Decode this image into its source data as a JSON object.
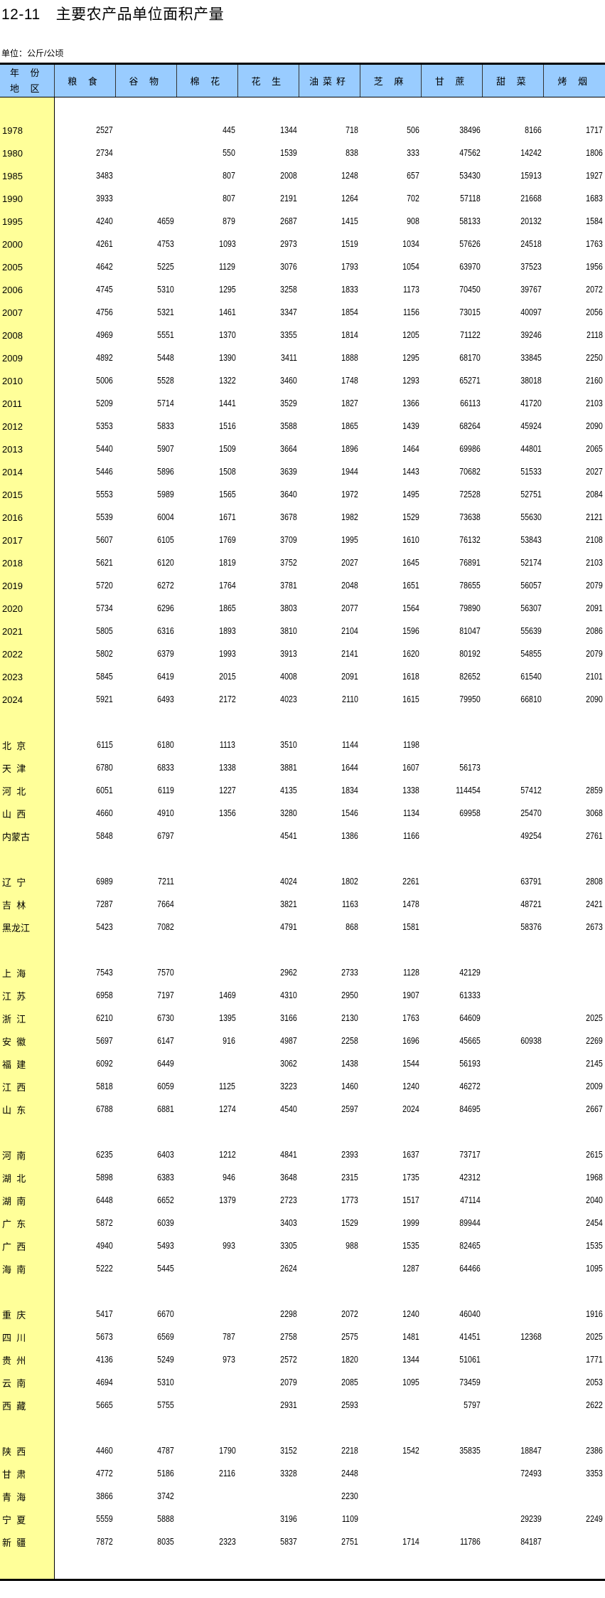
{
  "title": {
    "number": "12-11",
    "text": "主要农产品单位面积产量"
  },
  "unit": "单位：公斤/公顷",
  "colors": {
    "header_bg": "#99CCFF",
    "label_col_bg": "#FFFF99"
  },
  "header": {
    "first_col": [
      "年 份",
      "地 区"
    ],
    "columns": [
      "粮 食",
      "谷 物",
      "棉 花",
      "花 生",
      "油菜籽",
      "芝 麻",
      "甘 蔗",
      "甜 菜",
      "烤 烟"
    ]
  },
  "years": [
    {
      "label": "1978",
      "values": [
        "2527",
        "",
        "445",
        "1344",
        "718",
        "506",
        "38496",
        "8166",
        "1717"
      ]
    },
    {
      "label": "1980",
      "values": [
        "2734",
        "",
        "550",
        "1539",
        "838",
        "333",
        "47562",
        "14242",
        "1806"
      ]
    },
    {
      "label": "1985",
      "values": [
        "3483",
        "",
        "807",
        "2008",
        "1248",
        "657",
        "53430",
        "15913",
        "1927"
      ]
    },
    {
      "label": "1990",
      "values": [
        "3933",
        "",
        "807",
        "2191",
        "1264",
        "702",
        "57118",
        "21668",
        "1683"
      ]
    },
    {
      "label": "1995",
      "values": [
        "4240",
        "4659",
        "879",
        "2687",
        "1415",
        "908",
        "58133",
        "20132",
        "1584"
      ]
    },
    {
      "label": "2000",
      "values": [
        "4261",
        "4753",
        "1093",
        "2973",
        "1519",
        "1034",
        "57626",
        "24518",
        "1763"
      ]
    },
    {
      "label": "2005",
      "values": [
        "4642",
        "5225",
        "1129",
        "3076",
        "1793",
        "1054",
        "63970",
        "37523",
        "1956"
      ]
    },
    {
      "label": "2006",
      "values": [
        "4745",
        "5310",
        "1295",
        "3258",
        "1833",
        "1173",
        "70450",
        "39767",
        "2072"
      ]
    },
    {
      "label": "2007",
      "values": [
        "4756",
        "5321",
        "1461",
        "3347",
        "1854",
        "1156",
        "73015",
        "40097",
        "2056"
      ]
    },
    {
      "label": "2008",
      "values": [
        "4969",
        "5551",
        "1370",
        "3355",
        "1814",
        "1205",
        "71122",
        "39246",
        "2118"
      ]
    },
    {
      "label": "2009",
      "values": [
        "4892",
        "5448",
        "1390",
        "3411",
        "1888",
        "1295",
        "68170",
        "33845",
        "2250"
      ]
    },
    {
      "label": "2010",
      "values": [
        "5006",
        "5528",
        "1322",
        "3460",
        "1748",
        "1293",
        "65271",
        "38018",
        "2160"
      ]
    },
    {
      "label": "2011",
      "values": [
        "5209",
        "5714",
        "1441",
        "3529",
        "1827",
        "1366",
        "66113",
        "41720",
        "2103"
      ]
    },
    {
      "label": "2012",
      "values": [
        "5353",
        "5833",
        "1516",
        "3588",
        "1865",
        "1439",
        "68264",
        "45924",
        "2090"
      ]
    },
    {
      "label": "2013",
      "values": [
        "5440",
        "5907",
        "1509",
        "3664",
        "1896",
        "1464",
        "69986",
        "44801",
        "2065"
      ]
    },
    {
      "label": "2014",
      "values": [
        "5446",
        "5896",
        "1508",
        "3639",
        "1944",
        "1443",
        "70682",
        "51533",
        "2027"
      ]
    },
    {
      "label": "2015",
      "values": [
        "5553",
        "5989",
        "1565",
        "3640",
        "1972",
        "1495",
        "72528",
        "52751",
        "2084"
      ]
    },
    {
      "label": "2016",
      "values": [
        "5539",
        "6004",
        "1671",
        "3678",
        "1982",
        "1529",
        "73638",
        "55630",
        "2121"
      ]
    },
    {
      "label": "2017",
      "values": [
        "5607",
        "6105",
        "1769",
        "3709",
        "1995",
        "1610",
        "76132",
        "53843",
        "2108"
      ]
    },
    {
      "label": "2018",
      "values": [
        "5621",
        "6120",
        "1819",
        "3752",
        "2027",
        "1645",
        "76891",
        "52174",
        "2103"
      ]
    },
    {
      "label": "2019",
      "values": [
        "5720",
        "6272",
        "1764",
        "3781",
        "2048",
        "1651",
        "78655",
        "56057",
        "2079"
      ]
    },
    {
      "label": "2020",
      "values": [
        "5734",
        "6296",
        "1865",
        "3803",
        "2077",
        "1564",
        "79890",
        "56307",
        "2091"
      ]
    },
    {
      "label": "2021",
      "values": [
        "5805",
        "6316",
        "1893",
        "3810",
        "2104",
        "1596",
        "81047",
        "55639",
        "2086"
      ]
    },
    {
      "label": "2022",
      "values": [
        "5802",
        "6379",
        "1993",
        "3913",
        "2141",
        "1620",
        "80192",
        "54855",
        "2079"
      ]
    },
    {
      "label": "2023",
      "values": [
        "5845",
        "6419",
        "2015",
        "4008",
        "2091",
        "1618",
        "82652",
        "61540",
        "2101"
      ]
    },
    {
      "label": "2024",
      "values": [
        "5921",
        "6493",
        "2172",
        "4023",
        "2110",
        "1615",
        "79950",
        "66810",
        "2090"
      ]
    }
  ],
  "region_groups": [
    [
      {
        "label": "北  京",
        "values": [
          "6115",
          "6180",
          "1113",
          "3510",
          "1144",
          "1198",
          "",
          "",
          ""
        ]
      },
      {
        "label": "天  津",
        "values": [
          "6780",
          "6833",
          "1338",
          "3881",
          "1644",
          "1607",
          "56173",
          "",
          ""
        ]
      },
      {
        "label": "河  北",
        "values": [
          "6051",
          "6119",
          "1227",
          "4135",
          "1834",
          "1338",
          "114454",
          "57412",
          "2859"
        ]
      },
      {
        "label": "山  西",
        "values": [
          "4660",
          "4910",
          "1356",
          "3280",
          "1546",
          "1134",
          "69958",
          "25470",
          "3068"
        ]
      },
      {
        "label": "内蒙古",
        "values": [
          "5848",
          "6797",
          "",
          "4541",
          "1386",
          "1166",
          "",
          "49254",
          "2761"
        ]
      }
    ],
    [
      {
        "label": "辽  宁",
        "values": [
          "6989",
          "7211",
          "",
          "4024",
          "1802",
          "2261",
          "",
          "63791",
          "2808"
        ]
      },
      {
        "label": "吉  林",
        "values": [
          "7287",
          "7664",
          "",
          "3821",
          "1163",
          "1478",
          "",
          "48721",
          "2421"
        ]
      },
      {
        "label": "黑龙江",
        "values": [
          "5423",
          "7082",
          "",
          "4791",
          "868",
          "1581",
          "",
          "58376",
          "2673"
        ]
      }
    ],
    [
      {
        "label": "上  海",
        "values": [
          "7543",
          "7570",
          "",
          "2962",
          "2733",
          "1128",
          "42129",
          "",
          ""
        ]
      },
      {
        "label": "江  苏",
        "values": [
          "6958",
          "7197",
          "1469",
          "4310",
          "2950",
          "1907",
          "61333",
          "",
          ""
        ]
      },
      {
        "label": "浙  江",
        "values": [
          "6210",
          "6730",
          "1395",
          "3166",
          "2130",
          "1763",
          "64609",
          "",
          "2025"
        ]
      },
      {
        "label": "安  徽",
        "values": [
          "5697",
          "6147",
          "916",
          "4987",
          "2258",
          "1696",
          "45665",
          "60938",
          "2269"
        ]
      },
      {
        "label": "福  建",
        "values": [
          "6092",
          "6449",
          "",
          "3062",
          "1438",
          "1544",
          "56193",
          "",
          "2145"
        ]
      },
      {
        "label": "江  西",
        "values": [
          "5818",
          "6059",
          "1125",
          "3223",
          "1460",
          "1240",
          "46272",
          "",
          "2009"
        ]
      },
      {
        "label": "山  东",
        "values": [
          "6788",
          "6881",
          "1274",
          "4540",
          "2597",
          "2024",
          "84695",
          "",
          "2667"
        ]
      }
    ],
    [
      {
        "label": "河  南",
        "values": [
          "6235",
          "6403",
          "1212",
          "4841",
          "2393",
          "1637",
          "73717",
          "",
          "2615"
        ]
      },
      {
        "label": "湖  北",
        "values": [
          "5898",
          "6383",
          "946",
          "3648",
          "2315",
          "1735",
          "42312",
          "",
          "1968"
        ]
      },
      {
        "label": "湖  南",
        "values": [
          "6448",
          "6652",
          "1379",
          "2723",
          "1773",
          "1517",
          "47114",
          "",
          "2040"
        ]
      },
      {
        "label": "广  东",
        "values": [
          "5872",
          "6039",
          "",
          "3403",
          "1529",
          "1999",
          "89944",
          "",
          "2454"
        ]
      },
      {
        "label": "广  西",
        "values": [
          "4940",
          "5493",
          "993",
          "3305",
          "988",
          "1535",
          "82465",
          "",
          "1535"
        ]
      },
      {
        "label": "海  南",
        "values": [
          "5222",
          "5445",
          "",
          "2624",
          "",
          "1287",
          "64466",
          "",
          "1095"
        ]
      }
    ],
    [
      {
        "label": "重  庆",
        "values": [
          "5417",
          "6670",
          "",
          "2298",
          "2072",
          "1240",
          "46040",
          "",
          "1916"
        ]
      },
      {
        "label": "四  川",
        "values": [
          "5673",
          "6569",
          "787",
          "2758",
          "2575",
          "1481",
          "41451",
          "12368",
          "2025"
        ]
      },
      {
        "label": "贵  州",
        "values": [
          "4136",
          "5249",
          "973",
          "2572",
          "1820",
          "1344",
          "51061",
          "",
          "1771"
        ]
      },
      {
        "label": "云  南",
        "values": [
          "4694",
          "5310",
          "",
          "2079",
          "2085",
          "1095",
          "73459",
          "",
          "2053"
        ]
      },
      {
        "label": "西  藏",
        "values": [
          "5665",
          "5755",
          "",
          "2931",
          "2593",
          "",
          "5797",
          "",
          "2622"
        ]
      }
    ],
    [
      {
        "label": "陕  西",
        "values": [
          "4460",
          "4787",
          "1790",
          "3152",
          "2218",
          "1542",
          "35835",
          "18847",
          "2386"
        ]
      },
      {
        "label": "甘  肃",
        "values": [
          "4772",
          "5186",
          "2116",
          "3328",
          "2448",
          "",
          "",
          "72493",
          "3353"
        ]
      },
      {
        "label": "青  海",
        "values": [
          "3866",
          "3742",
          "",
          "",
          "2230",
          "",
          "",
          "",
          ""
        ]
      },
      {
        "label": "宁  夏",
        "values": [
          "5559",
          "5888",
          "",
          "3196",
          "1109",
          "",
          "",
          "29239",
          "2249"
        ]
      },
      {
        "label": "新  疆",
        "values": [
          "7872",
          "8035",
          "2323",
          "5837",
          "2751",
          "1714",
          "11786",
          "84187",
          ""
        ]
      }
    ]
  ]
}
